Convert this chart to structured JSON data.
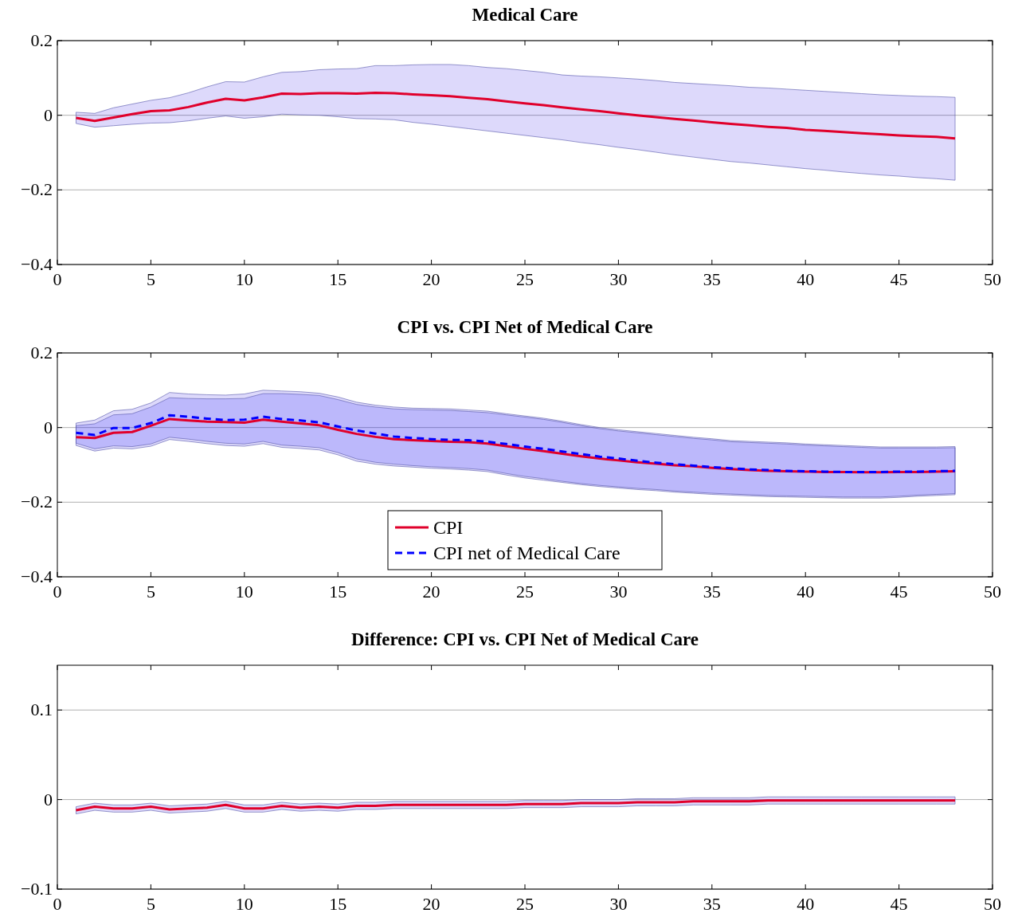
{
  "chart_data": [
    {
      "type": "line",
      "title": "Medical Care",
      "x": [
        1,
        2,
        3,
        4,
        5,
        6,
        7,
        8,
        9,
        10,
        11,
        12,
        13,
        14,
        15,
        16,
        17,
        18,
        19,
        20,
        21,
        22,
        23,
        24,
        25,
        26,
        27,
        28,
        29,
        30,
        31,
        32,
        33,
        34,
        35,
        36,
        37,
        38,
        39,
        40,
        41,
        42,
        43,
        44,
        45,
        46,
        47,
        48
      ],
      "xlim": [
        0,
        50
      ],
      "xticks": [
        0,
        5,
        10,
        15,
        20,
        25,
        30,
        35,
        40,
        45,
        50
      ],
      "ylim": [
        -0.4,
        0.2
      ],
      "yticks": [
        {
          "value": -0.4,
          "label": "−0.4"
        },
        {
          "value": -0.2,
          "label": "−0.2"
        },
        0,
        0.2
      ],
      "grid": "y",
      "legend": false,
      "series": [
        {
          "color": "#e0002b",
          "line_style": "solid",
          "values": [
            -0.007,
            -0.015,
            -0.006,
            0.003,
            0.011,
            0.013,
            0.022,
            0.034,
            0.044,
            0.04,
            0.048,
            0.058,
            0.057,
            0.059,
            0.059,
            0.058,
            0.06,
            0.059,
            0.056,
            0.054,
            0.051,
            0.047,
            0.043,
            0.037,
            0.032,
            0.027,
            0.021,
            0.016,
            0.011,
            0.005,
            0.0,
            -0.005,
            -0.01,
            -0.014,
            -0.019,
            -0.023,
            -0.027,
            -0.031,
            -0.034,
            -0.039,
            -0.042,
            -0.045,
            -0.048,
            -0.051,
            -0.054,
            -0.056,
            -0.058,
            -0.062
          ],
          "upper": [
            0.008,
            0.005,
            0.02,
            0.03,
            0.04,
            0.047,
            0.06,
            0.076,
            0.09,
            0.089,
            0.103,
            0.115,
            0.117,
            0.122,
            0.124,
            0.125,
            0.133,
            0.133,
            0.135,
            0.136,
            0.136,
            0.133,
            0.128,
            0.125,
            0.12,
            0.115,
            0.108,
            0.105,
            0.103,
            0.1,
            0.097,
            0.093,
            0.088,
            0.085,
            0.082,
            0.079,
            0.075,
            0.073,
            0.07,
            0.067,
            0.064,
            0.061,
            0.058,
            0.055,
            0.053,
            0.051,
            0.05,
            0.048
          ],
          "lower": [
            -0.022,
            -0.032,
            -0.028,
            -0.024,
            -0.021,
            -0.02,
            -0.015,
            -0.008,
            -0.002,
            -0.008,
            -0.004,
            0.003,
            0.001,
            0.0,
            -0.004,
            -0.009,
            -0.01,
            -0.012,
            -0.019,
            -0.024,
            -0.03,
            -0.036,
            -0.042,
            -0.048,
            -0.054,
            -0.06,
            -0.066,
            -0.073,
            -0.079,
            -0.086,
            -0.092,
            -0.099,
            -0.106,
            -0.112,
            -0.118,
            -0.124,
            -0.128,
            -0.133,
            -0.138,
            -0.143,
            -0.147,
            -0.152,
            -0.156,
            -0.16,
            -0.163,
            -0.167,
            -0.17,
            -0.174
          ]
        }
      ]
    },
    {
      "type": "line",
      "title": "CPI vs. CPI Net of Medical Care",
      "x": [
        1,
        2,
        3,
        4,
        5,
        6,
        7,
        8,
        9,
        10,
        11,
        12,
        13,
        14,
        15,
        16,
        17,
        18,
        19,
        20,
        21,
        22,
        23,
        24,
        25,
        26,
        27,
        28,
        29,
        30,
        31,
        32,
        33,
        34,
        35,
        36,
        37,
        38,
        39,
        40,
        41,
        42,
        43,
        44,
        45,
        46,
        47,
        48
      ],
      "xlim": [
        0,
        50
      ],
      "xticks": [
        0,
        5,
        10,
        15,
        20,
        25,
        30,
        35,
        40,
        45,
        50
      ],
      "ylim": [
        -0.4,
        0.2
      ],
      "yticks": [
        {
          "value": -0.4,
          "label": "−0.4"
        },
        {
          "value": -0.2,
          "label": "−0.2"
        },
        0,
        0.2
      ],
      "grid": "y",
      "legend": "bottom",
      "series": [
        {
          "name": "CPI",
          "color": "#e0002b",
          "line_style": "solid",
          "values": [
            -0.026,
            -0.028,
            -0.014,
            -0.012,
            0.005,
            0.023,
            0.019,
            0.016,
            0.015,
            0.013,
            0.021,
            0.016,
            0.011,
            0.006,
            -0.006,
            -0.017,
            -0.025,
            -0.031,
            -0.034,
            -0.036,
            -0.038,
            -0.039,
            -0.043,
            -0.05,
            -0.057,
            -0.063,
            -0.07,
            -0.077,
            -0.083,
            -0.088,
            -0.093,
            -0.097,
            -0.101,
            -0.104,
            -0.108,
            -0.111,
            -0.114,
            -0.116,
            -0.117,
            -0.118,
            -0.119,
            -0.119,
            -0.12,
            -0.12,
            -0.119,
            -0.119,
            -0.118,
            -0.117
          ],
          "upper": [
            0.012,
            0.02,
            0.045,
            0.049,
            0.066,
            0.094,
            0.09,
            0.088,
            0.087,
            0.09,
            0.1,
            0.098,
            0.096,
            0.092,
            0.082,
            0.068,
            0.06,
            0.055,
            0.052,
            0.051,
            0.05,
            0.047,
            0.044,
            0.037,
            0.031,
            0.025,
            0.017,
            0.008,
            0.0,
            -0.006,
            -0.011,
            -0.016,
            -0.021,
            -0.026,
            -0.03,
            -0.035,
            -0.037,
            -0.039,
            -0.041,
            -0.044,
            -0.046,
            -0.048,
            -0.05,
            -0.052,
            -0.052,
            -0.052,
            -0.052,
            -0.051
          ],
          "lower": [
            -0.048,
            -0.063,
            -0.055,
            -0.057,
            -0.05,
            -0.032,
            -0.037,
            -0.043,
            -0.048,
            -0.05,
            -0.043,
            -0.053,
            -0.056,
            -0.06,
            -0.073,
            -0.09,
            -0.098,
            -0.103,
            -0.106,
            -0.109,
            -0.111,
            -0.114,
            -0.118,
            -0.127,
            -0.135,
            -0.141,
            -0.147,
            -0.153,
            -0.158,
            -0.162,
            -0.166,
            -0.169,
            -0.173,
            -0.176,
            -0.179,
            -0.181,
            -0.183,
            -0.185,
            -0.186,
            -0.187,
            -0.188,
            -0.189,
            -0.189,
            -0.189,
            -0.187,
            -0.184,
            -0.182,
            -0.18
          ]
        },
        {
          "name": "CPI net of Medical Care",
          "color": "#0000ff",
          "line_style": "dashed",
          "values": [
            -0.014,
            -0.02,
            -0.001,
            -0.001,
            0.012,
            0.033,
            0.029,
            0.024,
            0.02,
            0.021,
            0.029,
            0.023,
            0.019,
            0.014,
            0.003,
            -0.008,
            -0.016,
            -0.024,
            -0.028,
            -0.031,
            -0.033,
            -0.034,
            -0.038,
            -0.044,
            -0.051,
            -0.057,
            -0.064,
            -0.071,
            -0.078,
            -0.083,
            -0.089,
            -0.094,
            -0.098,
            -0.102,
            -0.106,
            -0.109,
            -0.112,
            -0.114,
            -0.116,
            -0.117,
            -0.118,
            -0.119,
            -0.119,
            -0.119,
            -0.118,
            -0.118,
            -0.117,
            -0.116
          ],
          "upper": [
            0.005,
            0.01,
            0.034,
            0.037,
            0.055,
            0.08,
            0.078,
            0.077,
            0.077,
            0.078,
            0.091,
            0.091,
            0.089,
            0.086,
            0.075,
            0.062,
            0.055,
            0.05,
            0.048,
            0.047,
            0.046,
            0.043,
            0.04,
            0.034,
            0.028,
            0.022,
            0.014,
            0.005,
            -0.003,
            -0.009,
            -0.014,
            -0.019,
            -0.024,
            -0.029,
            -0.033,
            -0.038,
            -0.04,
            -0.042,
            -0.044,
            -0.047,
            -0.049,
            -0.051,
            -0.053,
            -0.055,
            -0.055,
            -0.055,
            -0.055,
            -0.054
          ],
          "lower": [
            -0.042,
            -0.057,
            -0.049,
            -0.051,
            -0.044,
            -0.026,
            -0.031,
            -0.037,
            -0.042,
            -0.044,
            -0.037,
            -0.047,
            -0.05,
            -0.054,
            -0.067,
            -0.084,
            -0.093,
            -0.098,
            -0.102,
            -0.105,
            -0.107,
            -0.11,
            -0.114,
            -0.123,
            -0.131,
            -0.137,
            -0.144,
            -0.15,
            -0.155,
            -0.159,
            -0.163,
            -0.166,
            -0.17,
            -0.173,
            -0.176,
            -0.178,
            -0.18,
            -0.182,
            -0.183,
            -0.184,
            -0.185,
            -0.186,
            -0.186,
            -0.186,
            -0.184,
            -0.181,
            -0.179,
            -0.177
          ]
        }
      ]
    },
    {
      "type": "line",
      "title": "Difference: CPI vs. CPI Net of Medical Care",
      "x": [
        1,
        2,
        3,
        4,
        5,
        6,
        7,
        8,
        9,
        10,
        11,
        12,
        13,
        14,
        15,
        16,
        17,
        18,
        19,
        20,
        21,
        22,
        23,
        24,
        25,
        26,
        27,
        28,
        29,
        30,
        31,
        32,
        33,
        34,
        35,
        36,
        37,
        38,
        39,
        40,
        41,
        42,
        43,
        44,
        45,
        46,
        47,
        48
      ],
      "xlim": [
        0,
        50
      ],
      "xticks": [
        0,
        5,
        10,
        15,
        20,
        25,
        30,
        35,
        40,
        45,
        50
      ],
      "ylim": [
        -0.1,
        0.15
      ],
      "yticks": [
        {
          "value": -0.1,
          "label": "−0.1"
        },
        0,
        0.1
      ],
      "grid": "y",
      "legend": false,
      "series": [
        {
          "color": "#e0002b",
          "line_style": "solid",
          "values": [
            -0.012,
            -0.008,
            -0.01,
            -0.01,
            -0.008,
            -0.011,
            -0.01,
            -0.009,
            -0.006,
            -0.01,
            -0.01,
            -0.007,
            -0.009,
            -0.008,
            -0.009,
            -0.007,
            -0.007,
            -0.006,
            -0.006,
            -0.006,
            -0.006,
            -0.006,
            -0.006,
            -0.006,
            -0.005,
            -0.005,
            -0.005,
            -0.004,
            -0.004,
            -0.004,
            -0.003,
            -0.003,
            -0.003,
            -0.002,
            -0.002,
            -0.002,
            -0.002,
            -0.001,
            -0.001,
            -0.001,
            -0.001,
            -0.001,
            -0.001,
            -0.001,
            -0.001,
            -0.001,
            -0.001,
            -0.001
          ],
          "upper": [
            -0.008,
            -0.004,
            -0.006,
            -0.006,
            -0.004,
            -0.007,
            -0.006,
            -0.005,
            -0.002,
            -0.006,
            -0.006,
            -0.003,
            -0.005,
            -0.004,
            -0.005,
            -0.003,
            -0.003,
            -0.002,
            -0.002,
            -0.002,
            -0.002,
            -0.002,
            -0.002,
            -0.002,
            -0.001,
            -0.001,
            -0.001,
            0.0,
            0.0,
            0.0,
            0.001,
            0.001,
            0.001,
            0.002,
            0.002,
            0.002,
            0.002,
            0.003,
            0.003,
            0.003,
            0.003,
            0.003,
            0.003,
            0.003,
            0.003,
            0.003,
            0.003,
            0.003
          ],
          "lower": [
            -0.016,
            -0.012,
            -0.014,
            -0.014,
            -0.012,
            -0.015,
            -0.014,
            -0.013,
            -0.01,
            -0.014,
            -0.014,
            -0.011,
            -0.013,
            -0.012,
            -0.013,
            -0.011,
            -0.011,
            -0.01,
            -0.01,
            -0.01,
            -0.01,
            -0.01,
            -0.01,
            -0.01,
            -0.009,
            -0.009,
            -0.009,
            -0.008,
            -0.008,
            -0.008,
            -0.007,
            -0.007,
            -0.007,
            -0.006,
            -0.006,
            -0.006,
            -0.006,
            -0.005,
            -0.005,
            -0.005,
            -0.005,
            -0.005,
            -0.005,
            -0.005,
            -0.005,
            -0.005,
            -0.005,
            -0.005
          ]
        }
      ]
    }
  ]
}
